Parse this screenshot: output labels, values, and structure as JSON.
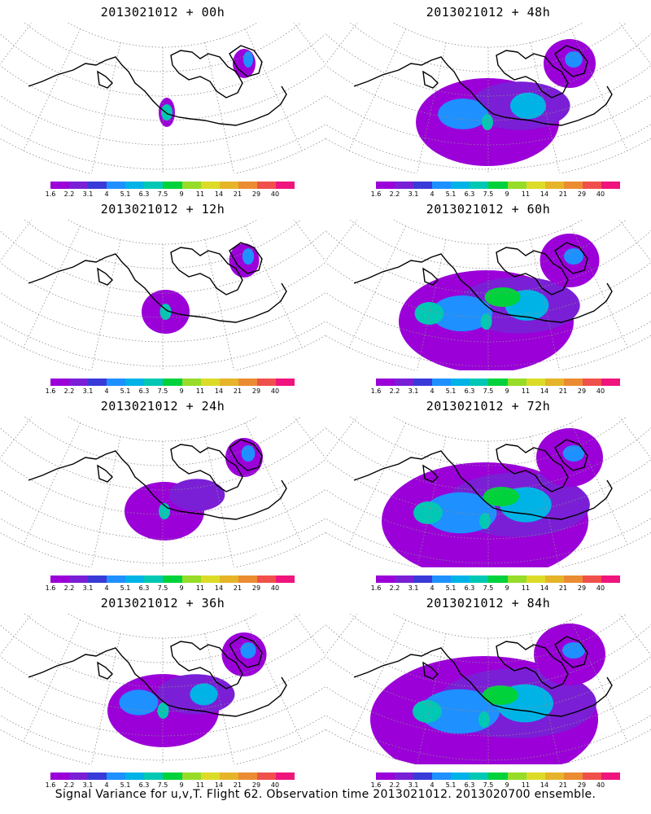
{
  "panels": [
    {
      "title": "2013021012 + 00h",
      "spread": 0.0
    },
    {
      "title": "2013021012 + 48h",
      "spread": 0.6
    },
    {
      "title": "2013021012 + 12h",
      "spread": 0.15
    },
    {
      "title": "2013021012 + 60h",
      "spread": 0.75
    },
    {
      "title": "2013021012 + 24h",
      "spread": 0.3
    },
    {
      "title": "2013021012 + 72h",
      "spread": 0.9
    },
    {
      "title": "2013021012 + 36h",
      "spread": 0.45
    },
    {
      "title": "2013021012 + 84h",
      "spread": 1.0
    }
  ],
  "colorbar": {
    "labels": [
      "1.6",
      "2.2",
      "3.1",
      "4",
      "5.1",
      "6.3",
      "7.5",
      "9",
      "11",
      "14",
      "21",
      "29",
      "40"
    ],
    "colors": [
      "#9b00d9",
      "#7a1fd6",
      "#3a3ad9",
      "#1e90ff",
      "#00b3e6",
      "#00c8b4",
      "#00d23c",
      "#96dc28",
      "#dcdc28",
      "#e6b428",
      "#eb8c32",
      "#f0504b",
      "#f0147d"
    ]
  },
  "footer": "Signal Variance for u,v,T. Flight 62. Observation time 2013021012. 2013020700 ensemble."
}
